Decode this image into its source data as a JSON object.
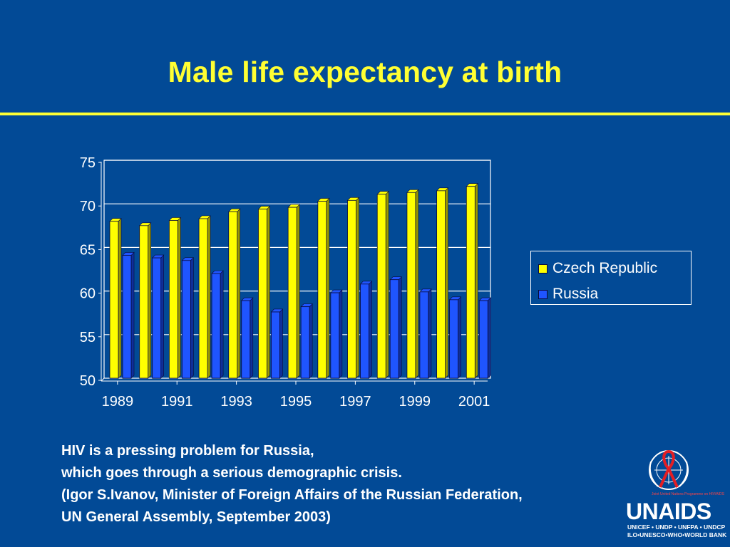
{
  "slide": {
    "title": "Male life expectancy at birth",
    "quote_lines": [
      "HIV is a pressing problem for Russia,",
      "which goes through a serious demographic crisis.",
      "(Igor S.Ivanov, Minister of Foreign Affairs of the Russian Federation,",
      "UN General Assembly, September 2003)"
    ],
    "logo": {
      "name": "UNAIDS",
      "line1": "UNICEF • UNDP • UNFPA • UNDCP",
      "line2": "ILO•UNESCO•WHO•WORLD BANK",
      "small": "Joint United Nations Programme on HIV/AIDS"
    },
    "colors": {
      "background": "#024a96",
      "title": "#ffff33",
      "czech": "#ffff00",
      "russia": "#1f55ff"
    }
  },
  "chart_data": {
    "type": "bar",
    "categories": [
      "1989",
      "1990",
      "1991",
      "1992",
      "1993",
      "1994",
      "1995",
      "1996",
      "1997",
      "1998",
      "1999",
      "2000",
      "2001"
    ],
    "x_tick_labels": [
      "1989",
      "1991",
      "1993",
      "1995",
      "1997",
      "1999",
      "2001"
    ],
    "series": [
      {
        "name": "Czech Republic",
        "values": [
          68.0,
          67.5,
          68.1,
          68.3,
          69.1,
          69.4,
          69.6,
          70.3,
          70.4,
          71.1,
          71.3,
          71.5,
          72.0
        ]
      },
      {
        "name": "Russia",
        "values": [
          64.1,
          63.8,
          63.5,
          62.0,
          58.9,
          57.6,
          58.2,
          59.8,
          60.8,
          61.3,
          59.9,
          59.0,
          58.9
        ]
      }
    ],
    "ylim": [
      50,
      75
    ],
    "y_ticks": [
      50,
      55,
      60,
      65,
      70,
      75
    ],
    "grid": true,
    "legend": "right",
    "title": "",
    "xlabel": "",
    "ylabel": ""
  }
}
